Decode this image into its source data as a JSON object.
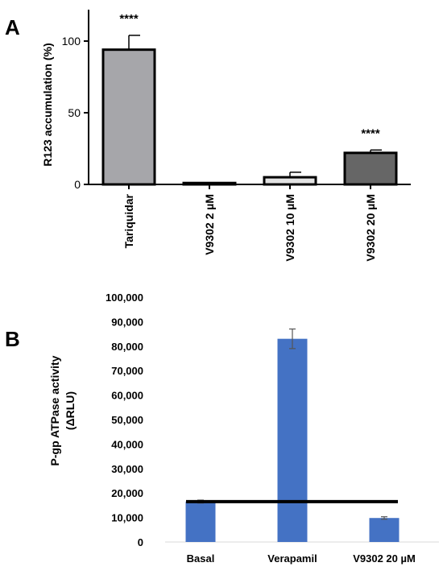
{
  "panels": {
    "a_letter": "A",
    "b_letter": "B"
  },
  "chart_data": [
    {
      "type": "bar",
      "panel": "A",
      "ylabel": "R123 accumulation (%)",
      "xlabel": "",
      "ylim": [
        0,
        110
      ],
      "yticks": [
        0,
        50,
        100
      ],
      "categories": [
        "Tariquidar",
        "V9302 2 µM",
        "V9302 10 µM",
        "V9302 20 µM"
      ],
      "values": [
        94,
        1,
        5,
        22
      ],
      "errors": [
        10,
        0,
        3.5,
        2
      ],
      "significance": [
        "****",
        "",
        "",
        "****"
      ],
      "bar_colors": [
        "#a6a6aa",
        "#d4d4d6",
        "#e2e2e2",
        "#666666"
      ],
      "grid": false
    },
    {
      "type": "bar",
      "panel": "B",
      "ylabel_lines": [
        "P-gp ATPase activity",
        "(ΔRLU)"
      ],
      "xlabel": "",
      "ylim": [
        0,
        100000
      ],
      "yticks": [
        0,
        10000,
        20000,
        30000,
        40000,
        50000,
        60000,
        70000,
        80000,
        90000,
        100000
      ],
      "ytick_labels": [
        "0",
        "10,000",
        "20,000",
        "30,000",
        "40,000",
        "50,000",
        "60,000",
        "70,000",
        "80,000",
        "90,000",
        "100,000"
      ],
      "categories": [
        "Basal",
        "Verapamil",
        "V9302 20 µM"
      ],
      "values": [
        16500,
        83000,
        9800
      ],
      "errors": [
        600,
        4000,
        500
      ],
      "bar_color": "#4472c4",
      "reference_line": 16500,
      "grid": false
    }
  ]
}
